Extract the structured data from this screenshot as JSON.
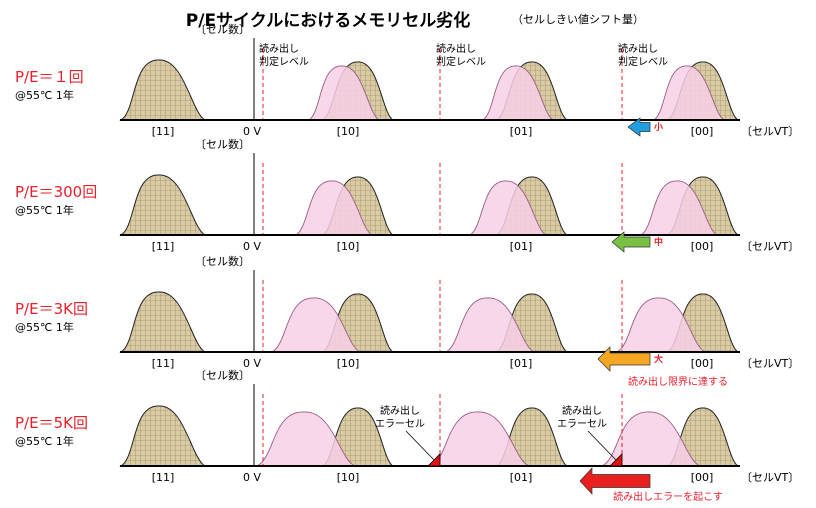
{
  "title": "P/Eサイクルにおけるメモリセル劣化",
  "subtitle": "（セルしきい値シフト量）",
  "labels": {
    "count": "〔セル数〕",
    "zero_v": "0 V",
    "axis": "〔セルVT〕",
    "states": [
      "[11]",
      "[10]",
      "[01]",
      "[00]"
    ],
    "read_level": [
      "読み出し",
      "判定レベル"
    ],
    "read_error": [
      "読み出し",
      "エラーセル"
    ],
    "condition": "@55℃ 1年"
  },
  "colors": {
    "accent_red": "#e8202a",
    "erased_fill": "#d8caa0",
    "programmed_fill": "#f7d0e8",
    "arrow_small": "#1f9fe0",
    "arrow_medium": "#7ac143",
    "arrow_large": "#f5a623",
    "arrow_xlarge": "#e82020"
  },
  "rows": [
    {
      "pe": "P/E＝１回",
      "condition": "@55℃ 1年",
      "shift_label": "小",
      "note": "",
      "arrow_color": "arrow_small"
    },
    {
      "pe": "P/E＝300回",
      "condition": "@55℃ 1年",
      "shift_label": "中",
      "note": "",
      "arrow_color": "arrow_medium"
    },
    {
      "pe": "P/E＝3K回",
      "condition": "@55℃ 1年",
      "shift_label": "大",
      "note": "読み出し限界に達する",
      "arrow_color": "arrow_large"
    },
    {
      "pe": "P/E＝5K回",
      "condition": "@55℃ 1年",
      "shift_label": "",
      "note": "読み出しエラーを起こす",
      "arrow_color": "arrow_xlarge"
    }
  ]
}
